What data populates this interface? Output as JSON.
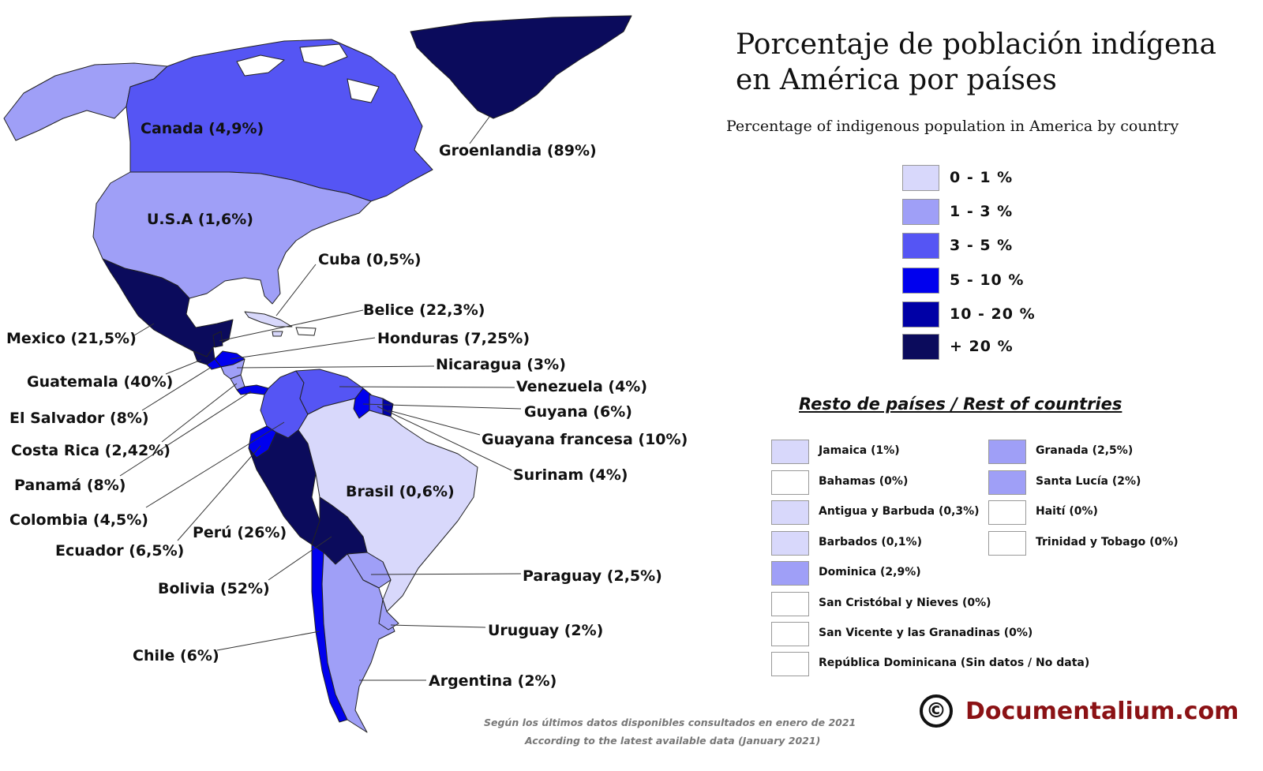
{
  "title_line1": "Porcentaje de población indígena",
  "title_line2": "en América por países",
  "subtitle": "Percentage of indigenous population in America by country",
  "legend": [
    {
      "label": "0 - 1 %",
      "color": "#d8d8fb"
    },
    {
      "label": "1 - 3 %",
      "color": "#9f9ff7"
    },
    {
      "label": "3 - 5 %",
      "color": "#5555f4"
    },
    {
      "label": "5 - 10 %",
      "color": "#0000ee"
    },
    {
      "label": "10 - 20 %",
      "color": "#0000a6"
    },
    {
      "label": "+ 20 %",
      "color": "#0b0b5c"
    }
  ],
  "countries": [
    {
      "label": "Canada (4,9%)"
    },
    {
      "label": "Groenlandia (89%)"
    },
    {
      "label": "U.S.A (1,6%)"
    },
    {
      "label": "Cuba (0,5%)"
    },
    {
      "label": "Belice (22,3%)"
    },
    {
      "label": "Mexico (21,5%)"
    },
    {
      "label": "Honduras (7,25%)"
    },
    {
      "label": "Nicaragua (3%)"
    },
    {
      "label": "Guatemala (40%)"
    },
    {
      "label": "Venezuela (4%)"
    },
    {
      "label": "El Salvador (8%)"
    },
    {
      "label": "Guyana (6%)"
    },
    {
      "label": "Guayana francesa (10%)"
    },
    {
      "label": "Costa Rica (2,42%)"
    },
    {
      "label": "Surinam (4%)"
    },
    {
      "label": "Panamá (8%)"
    },
    {
      "label": "Brasil (0,6%)"
    },
    {
      "label": "Colombia (4,5%)"
    },
    {
      "label": "Perú (26%)"
    },
    {
      "label": "Ecuador (6,5%)"
    },
    {
      "label": "Paraguay (2,5%)"
    },
    {
      "label": "Bolivia (52%)"
    },
    {
      "label": "Uruguay (2%)"
    },
    {
      "label": "Chile (6%)"
    },
    {
      "label": "Argentina (2%)"
    }
  ],
  "rest_title": "Resto de países / Rest of countries",
  "rest_countries": [
    {
      "label": "Jamaica (1%)",
      "color": "#d8d8fb"
    },
    {
      "label": "Bahamas (0%)",
      "color": "#ffffff"
    },
    {
      "label": "Antigua y Barbuda (0,3%)",
      "color": "#d8d8fb"
    },
    {
      "label": "Barbados (0,1%)",
      "color": "#d8d8fb"
    },
    {
      "label": "Dominica (2,9%)",
      "color": "#9f9ff7"
    },
    {
      "label": "San Cristóbal y Nieves (0%)",
      "color": "#ffffff"
    },
    {
      "label": "San Vicente y las Granadinas (0%)",
      "color": "#ffffff"
    },
    {
      "label": "República Dominicana (Sin datos / No data)",
      "color": "#ffffff"
    },
    {
      "label": "Granada (2,5%)",
      "color": "#9f9ff7"
    },
    {
      "label": "Santa Lucía (2%)",
      "color": "#9f9ff7"
    },
    {
      "label": "Haití (0%)",
      "color": "#ffffff"
    },
    {
      "label": "Trinidad y Tobago (0%)",
      "color": "#ffffff"
    }
  ],
  "note_es": "Según los últimos datos disponibles consultados en enero de 2021",
  "note_en": "According to the latest available data (January 2021)",
  "copyright_symbol": "©",
  "brand": "Documentalium.com"
}
